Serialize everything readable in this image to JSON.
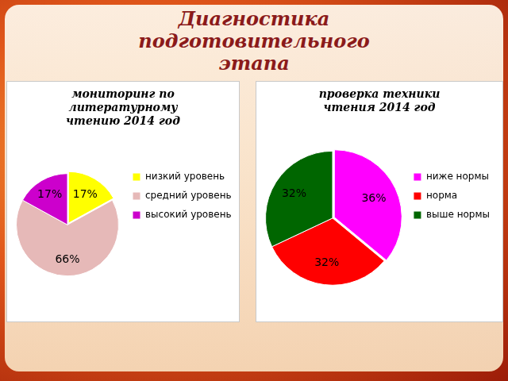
{
  "title": "Диагностика подготовительного этапа",
  "chart_data": [
    {
      "type": "pie",
      "title": "мониторинг по литературному чтению 2014 год",
      "categories": [
        "низкий уровень",
        "средний уровень",
        "высокий уровень"
      ],
      "values": [
        17,
        66,
        17
      ],
      "value_labels": [
        "17%",
        "66%",
        "17%"
      ],
      "colors": [
        "#ffff00",
        "#e6b9b8",
        "#cc00cc"
      ],
      "data_labels": true,
      "legend": "right"
    },
    {
      "type": "pie",
      "title": "проверка техники чтения 2014 год",
      "categories": [
        "ниже нормы",
        "норма",
        "выше нормы"
      ],
      "values": [
        36,
        32,
        32
      ],
      "value_labels": [
        "36%",
        "32%",
        "32%"
      ],
      "colors": [
        "#ff00ff",
        "#ff0000",
        "#006600"
      ],
      "data_labels": true,
      "legend": "right"
    }
  ]
}
